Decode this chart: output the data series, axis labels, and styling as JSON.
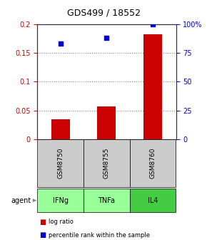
{
  "title": "GDS499 / 18552",
  "samples": [
    "GSM8750",
    "GSM8755",
    "GSM8760"
  ],
  "agents": [
    "IFNg",
    "TNFa",
    "IL4"
  ],
  "log_ratios": [
    0.035,
    0.057,
    0.182
  ],
  "percentile_ranks": [
    83,
    88,
    100
  ],
  "ylim_left": [
    0,
    0.2
  ],
  "ylim_right": [
    0,
    100
  ],
  "yticks_left": [
    0,
    0.05,
    0.1,
    0.15,
    0.2
  ],
  "yticks_right": [
    0,
    25,
    50,
    75,
    100
  ],
  "ytick_labels_left": [
    "0",
    "0.05",
    "0.1",
    "0.15",
    "0.2"
  ],
  "ytick_labels_right": [
    "0",
    "25",
    "50",
    "75",
    "100%"
  ],
  "bar_color": "#cc0000",
  "dot_color": "#0000cc",
  "sample_box_color": "#cccccc",
  "agent_box_color_light": "#99ff99",
  "agent_box_color_dark": "#44cc44",
  "grid_color": "#888888",
  "title_color": "#000000",
  "left_axis_color": "#cc0000",
  "right_axis_color": "#0000cc",
  "bar_width": 0.4,
  "legend_bar_label": "log ratio",
  "legend_dot_label": "percentile rank within the sample"
}
